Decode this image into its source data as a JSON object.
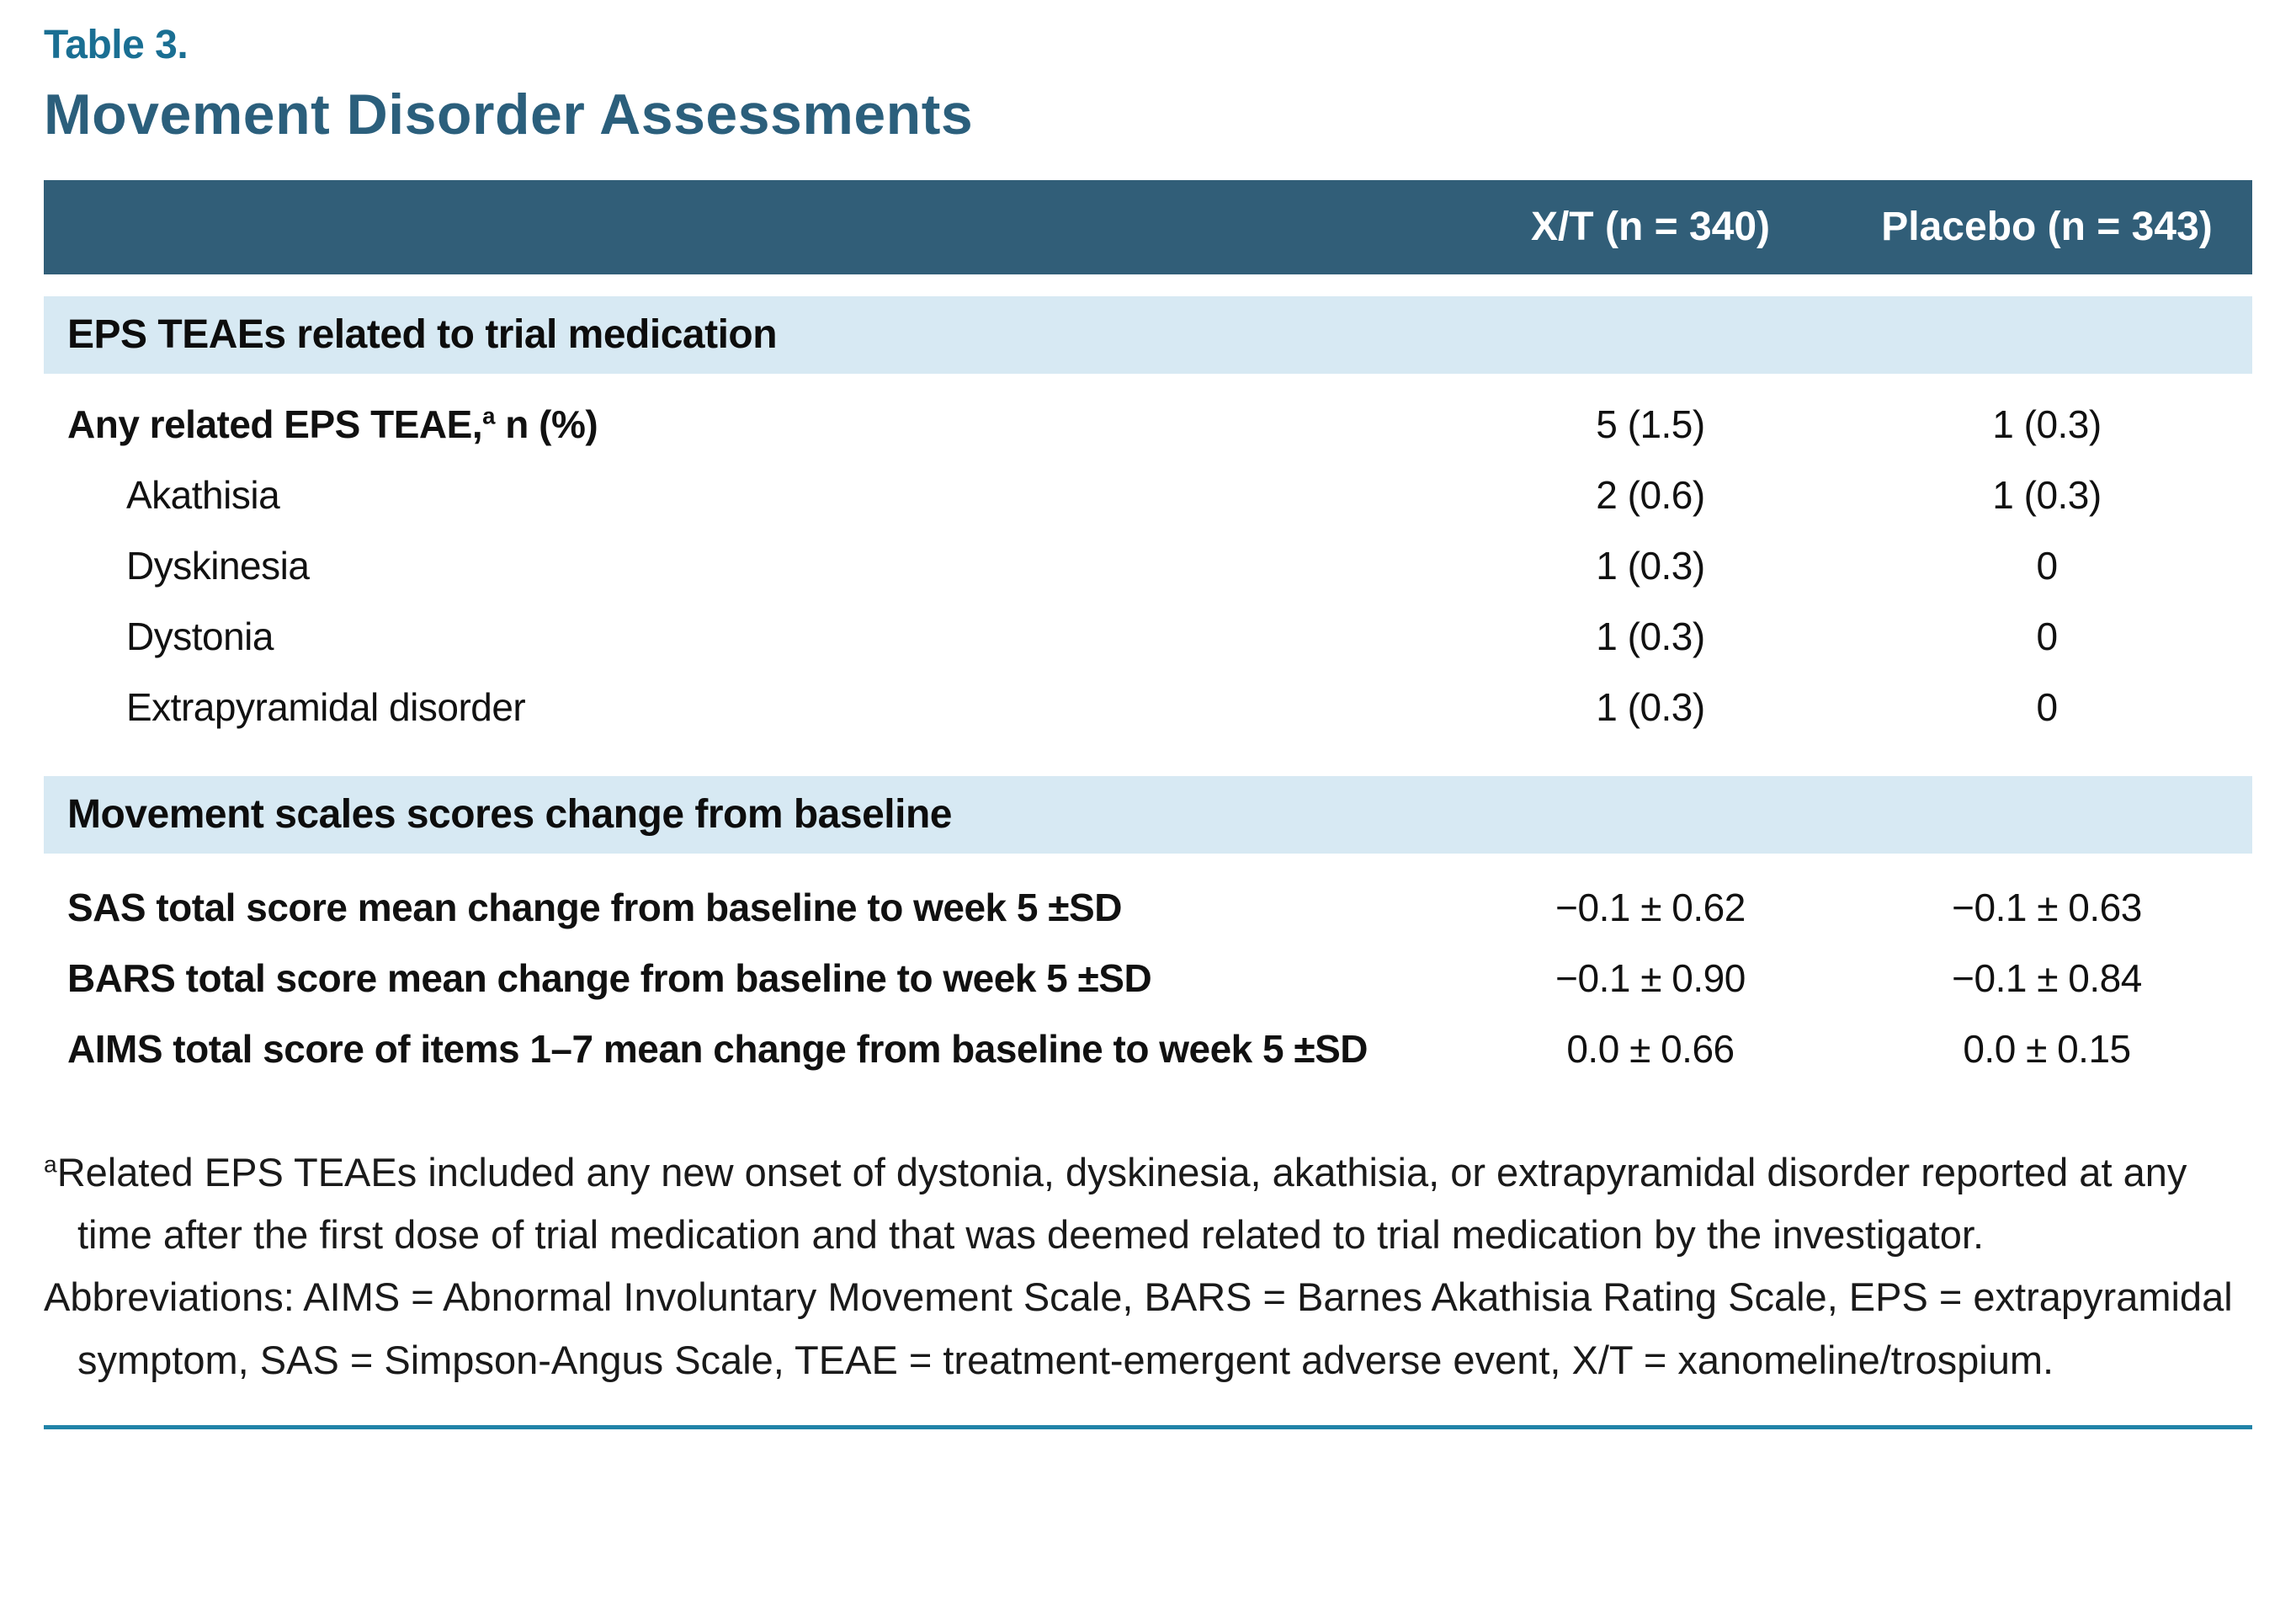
{
  "page": {
    "table_label": "Table 3.",
    "title": "Movement Disorder Assessments"
  },
  "table": {
    "columns": {
      "xt": "X/T (n = 340)",
      "placebo": "Placebo (n = 343)"
    },
    "section1_title": "EPS TEAEs related to trial medication",
    "section2_title": "Movement scales scores change from baseline",
    "rows": [
      {
        "label_pre": "Any related EPS TEAE,",
        "sup": "a",
        "label_post": " n (%)",
        "xt": "5 (1.5)",
        "placebo": "1 (0.3)"
      },
      {
        "label": "Akathisia",
        "xt": "2 (0.6)",
        "placebo": "1 (0.3)"
      },
      {
        "label": "Dyskinesia",
        "xt": "1 (0.3)",
        "placebo": "0"
      },
      {
        "label": "Dystonia",
        "xt": "1 (0.3)",
        "placebo": "0"
      },
      {
        "label": "Extrapyramidal disorder",
        "xt": "1 (0.3)",
        "placebo": "0"
      },
      {
        "label": "SAS total score mean change from baseline to week 5 ±SD",
        "xt": "−0.1 ± 0.62",
        "placebo": "−0.1 ± 0.63"
      },
      {
        "label": "BARS total score mean change from baseline to week 5 ±SD",
        "xt": "−0.1 ± 0.90",
        "placebo": "−0.1 ± 0.84"
      },
      {
        "label": "AIMS total score of items 1–7 mean change from baseline to week 5 ±SD",
        "xt": "0.0 ± 0.66",
        "placebo": "0.0 ± 0.15"
      }
    ]
  },
  "footnotes": {
    "a_sup": "a",
    "a_text": "Related EPS TEAEs included any new onset of dystonia, dyskinesia, akathisia, or extrapyramidal disorder reported at any time after the first dose of trial medication and that was deemed related to trial medication by the investigator.",
    "abbreviations": "Abbreviations: AIMS = Abnormal Involuntary Movement Scale, BARS = Barnes Akathisia Rating Scale, EPS = extrapyramidal symptom, SAS = Simpson-Angus Scale, TEAE = treatment-emergent adverse event, X/T = xanomeline/trospium."
  },
  "colors": {
    "header_bg": "#315e78",
    "section_band_bg": "#d7e9f3",
    "title": "#2b5f7c",
    "table_label": "#1a6f93",
    "bottom_rule": "#2083a8"
  }
}
